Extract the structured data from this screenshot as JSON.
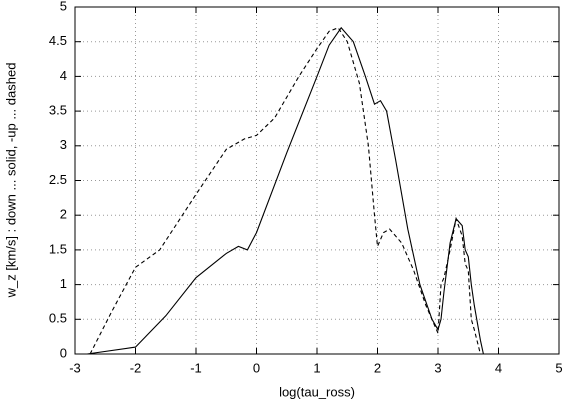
{
  "chart_data": {
    "type": "line",
    "xlabel": "log(tau_ross)",
    "ylabel": "w_z [km/s] : down ... solid, -up ... dashed",
    "xlim": [
      -3,
      5
    ],
    "xticks": [
      -3,
      -2,
      -1,
      0,
      1,
      2,
      3,
      4,
      5
    ],
    "ylim": [
      0,
      5
    ],
    "yticks": [
      0,
      0.5,
      1,
      1.5,
      2,
      2.5,
      3,
      3.5,
      4,
      4.5,
      5
    ],
    "grid": true,
    "series": [
      {
        "color": "#000000",
        "dash": "solid",
        "x": [
          -2.8,
          -2,
          -1.5,
          -1,
          -0.5,
          -0.3,
          -0.15,
          0,
          0.5,
          1,
          1.2,
          1.4,
          1.6,
          1.8,
          1.95,
          2.05,
          2.15,
          2.3,
          2.5,
          2.7,
          2.9,
          3.0,
          3.05,
          3.1,
          3.2,
          3.3,
          3.4,
          3.45,
          3.5,
          3.55,
          3.6,
          3.7,
          3.75
        ],
        "values": [
          0,
          0.1,
          0.55,
          1.1,
          1.45,
          1.55,
          1.5,
          1.75,
          2.9,
          4.0,
          4.45,
          4.7,
          4.5,
          4.0,
          3.6,
          3.65,
          3.5,
          2.8,
          1.8,
          1.0,
          0.5,
          0.35,
          0.5,
          0.9,
          1.6,
          1.95,
          1.85,
          1.5,
          1.4,
          1.0,
          0.7,
          0.2,
          0
        ]
      },
      {
        "color": "#000000",
        "dash": "dashed",
        "x": [
          -2.75,
          -2.4,
          -2,
          -1.6,
          -1,
          -0.5,
          -0.2,
          0,
          0.3,
          0.7,
          1,
          1.2,
          1.35,
          1.5,
          1.7,
          1.85,
          1.95,
          2.0,
          2.1,
          2.2,
          2.4,
          2.6,
          2.8,
          3.0,
          3.05,
          3.1,
          3.2,
          3.3,
          3.4,
          3.45,
          3.5,
          3.55,
          3.6,
          3.7
        ],
        "values": [
          0,
          0.6,
          1.25,
          1.5,
          2.3,
          2.95,
          3.1,
          3.15,
          3.4,
          4.0,
          4.4,
          4.65,
          4.7,
          4.5,
          3.9,
          3.0,
          2.0,
          1.55,
          1.75,
          1.8,
          1.6,
          1.2,
          0.7,
          0.3,
          1.0,
          1.1,
          1.5,
          1.95,
          1.7,
          1.3,
          1.2,
          0.5,
          0.35,
          0
        ]
      }
    ]
  }
}
